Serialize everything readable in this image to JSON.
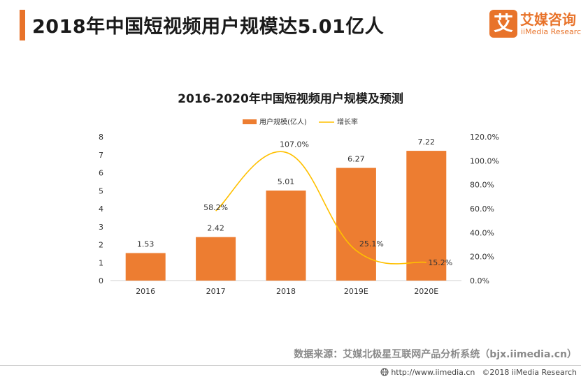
{
  "header": {
    "title": "2018年中国短视频用户规模达5.01亿人"
  },
  "logo": {
    "mark": "艾",
    "name_cn": "艾媒咨询",
    "name_en": "iiMedia Research"
  },
  "chart_data": {
    "type": "bar+line",
    "title": "2016-2020年中国短视频用户规模及预测",
    "categories": [
      "2016",
      "2017",
      "2018",
      "2019E",
      "2020E"
    ],
    "series": [
      {
        "name": "用户规模(亿人)",
        "kind": "bar",
        "axis": "left",
        "values": [
          1.53,
          2.42,
          5.01,
          6.27,
          7.22
        ],
        "labels": [
          "1.53",
          "2.42",
          "5.01",
          "6.27",
          "7.22"
        ],
        "color": "#ed7d31"
      },
      {
        "name": "增长率",
        "kind": "line",
        "axis": "right",
        "values": [
          null,
          58.2,
          107.0,
          25.1,
          15.2
        ],
        "labels": [
          null,
          "58.2%",
          "107.0%",
          "25.1%",
          "15.2%"
        ],
        "color": "#ffc000"
      }
    ],
    "y_left": {
      "min": 0,
      "max": 8,
      "ticks": [
        "0",
        "1",
        "2",
        "3",
        "4",
        "5",
        "6",
        "7",
        "8"
      ]
    },
    "y_right": {
      "min": 0,
      "max": 120,
      "ticks": [
        "0.0%",
        "20.0%",
        "40.0%",
        "60.0%",
        "80.0%",
        "100.0%",
        "120.0%"
      ]
    },
    "legend_position": "top"
  },
  "source": "数据来源：艾媒北极星互联网产品分析系统（bjx.iimedia.cn）",
  "footer": {
    "url": "http://www.iimedia.cn",
    "copyright": "©2018  iiMedia Research"
  },
  "colors": {
    "accent": "#e8732a",
    "bar": "#ed7d31",
    "line": "#ffc000"
  }
}
